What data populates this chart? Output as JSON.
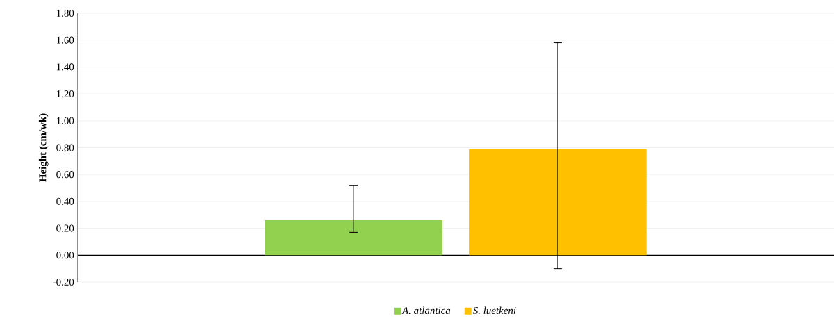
{
  "chart_data": {
    "type": "bar",
    "ylabel": "Height (cm/wk)",
    "categories": [
      null
    ],
    "series": [
      {
        "name": "*A. atlantica*",
        "color": "#92d050",
        "values": [
          0.26
        ],
        "errors": [
          [
            0.17,
            0.52
          ]
        ]
      },
      {
        "name": "*S. luetkeni*",
        "color": "#ffc000",
        "values": [
          0.79
        ],
        "errors": [
          [
            -0.1,
            1.58
          ]
        ]
      }
    ],
    "ylim": [
      -0.2,
      1.8
    ],
    "yticks": [
      {
        "value": -0.2,
        "label": "-0.20"
      },
      {
        "value": 0,
        "label": "0.00"
      },
      {
        "value": 0.2,
        "label": "0.20"
      },
      {
        "value": 0.4,
        "label": "0.40"
      },
      {
        "value": 0.6,
        "label": "0.60"
      },
      {
        "value": 0.8,
        "label": "0.80"
      },
      {
        "value": 1.0,
        "label": "1.00"
      },
      {
        "value": 1.2,
        "label": "1.20"
      },
      {
        "value": 1.4,
        "label": "1.40"
      },
      {
        "value": 1.6,
        "label": "1.60"
      },
      {
        "value": 1.8,
        "label": "1.80"
      }
    ],
    "grid": "y",
    "legend": "bottom"
  }
}
